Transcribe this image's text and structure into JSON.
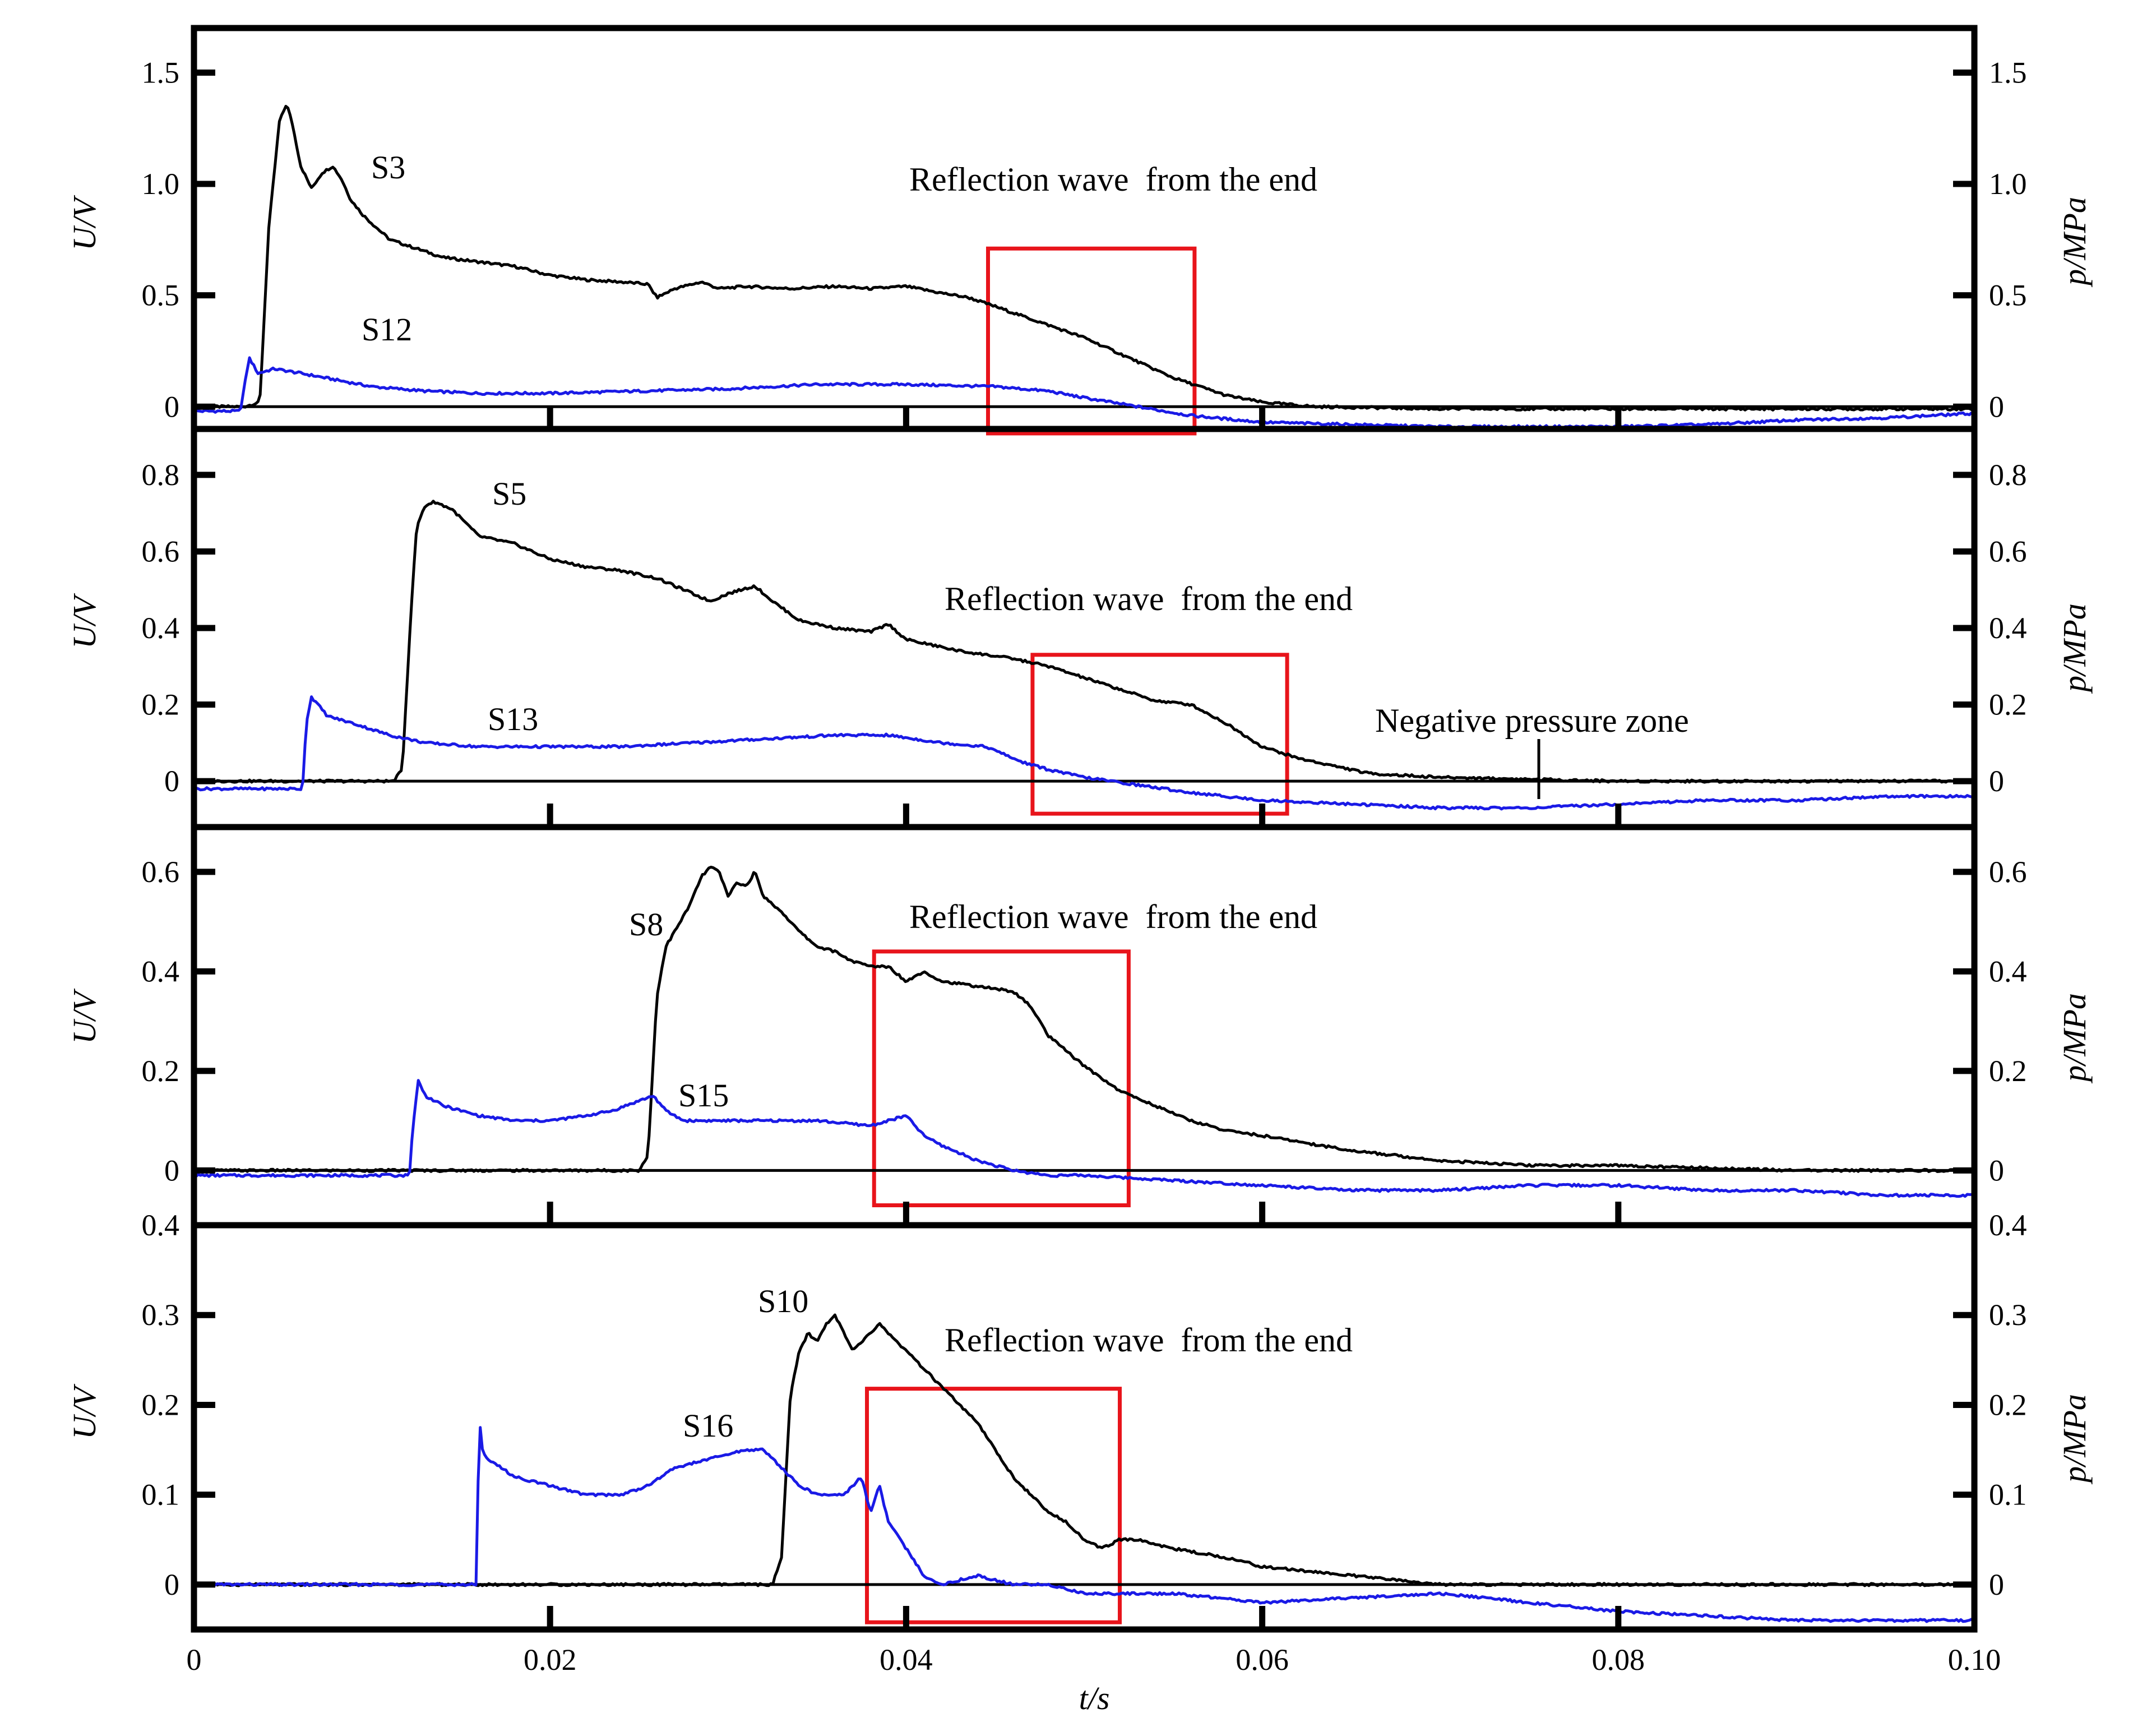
{
  "chart_data": [
    {
      "type": "line",
      "ylim": [
        -0.1,
        1.7
      ],
      "yticks": [
        0,
        0.5,
        1.0,
        1.5
      ],
      "ytick_labels": [
        "0",
        "0.5",
        "1.0",
        "1.5"
      ],
      "right_ytick_labels": [
        "0",
        "0.5",
        "1.0",
        "1.5"
      ],
      "ylabel": "U/V",
      "ylabel_right": "p/MPa",
      "annotation": "Reflection wave  from the end",
      "highlight_box": {
        "x": [
          0.0446,
          0.0562
        ],
        "y": [
          -0.12,
          0.71
        ]
      },
      "series": [
        {
          "name": "S3",
          "color": "#000000",
          "x": [
            0,
            0.0028,
            0.0037,
            0.0042,
            0.0048,
            0.0052,
            0.0055,
            0.006,
            0.0066,
            0.0072,
            0.0078,
            0.0083,
            0.0088,
            0.0095,
            0.0103,
            0.011,
            0.0125,
            0.014,
            0.016,
            0.018,
            0.02,
            0.022,
            0.024,
            0.0255,
            0.026,
            0.027,
            0.0285,
            0.0295,
            0.031,
            0.0335,
            0.036,
            0.038,
            0.04,
            0.042,
            0.0435,
            0.045,
            0.0475,
            0.05,
            0.0525,
            0.055,
            0.0565,
            0.058,
            0.06,
            0.063,
            0.07,
            0.08,
            0.09,
            0.1
          ],
          "y": [
            0,
            0,
            0.02,
            0.8,
            1.28,
            1.36,
            1.28,
            1.08,
            0.98,
            1.05,
            1.08,
            1.02,
            0.93,
            0.86,
            0.8,
            0.75,
            0.71,
            0.67,
            0.65,
            0.63,
            0.59,
            0.57,
            0.56,
            0.55,
            0.49,
            0.53,
            0.56,
            0.53,
            0.54,
            0.53,
            0.54,
            0.53,
            0.54,
            0.51,
            0.49,
            0.45,
            0.38,
            0.31,
            0.22,
            0.13,
            0.09,
            0.05,
            0.02,
            0.0,
            -0.01,
            -0.01,
            -0.01,
            -0.01
          ]
        },
        {
          "name": "S12",
          "color": "#1a1ae6",
          "x": [
            0,
            0.0026,
            0.0031,
            0.0036,
            0.0045,
            0.006,
            0.008,
            0.01,
            0.013,
            0.016,
            0.02,
            0.025,
            0.03,
            0.035,
            0.04,
            0.045,
            0.048,
            0.05,
            0.053,
            0.056,
            0.06,
            0.065,
            0.07,
            0.075,
            0.08,
            0.085,
            0.09,
            0.095,
            0.1
          ],
          "y": [
            -0.02,
            -0.02,
            0.22,
            0.15,
            0.17,
            0.15,
            0.12,
            0.09,
            0.07,
            0.06,
            0.06,
            0.07,
            0.08,
            0.1,
            0.1,
            0.09,
            0.07,
            0.04,
            0.0,
            -0.04,
            -0.07,
            -0.08,
            -0.09,
            -0.09,
            -0.09,
            -0.08,
            -0.06,
            -0.05,
            -0.03
          ]
        }
      ]
    },
    {
      "type": "line",
      "ylim": [
        -0.12,
        0.92
      ],
      "yticks": [
        0,
        0.2,
        0.4,
        0.6,
        0.8
      ],
      "ytick_labels": [
        "0",
        "0.2",
        "0.4",
        "0.6",
        "0.8"
      ],
      "right_ytick_labels": [
        "0",
        "0.2",
        "0.4",
        "0.6",
        "0.8"
      ],
      "ylabel": "U/V",
      "ylabel_right": "p/MPa",
      "annotation": "Reflection wave  from the end",
      "annotation2": "Negative pressure zone",
      "highlight_box": {
        "x": [
          0.0471,
          0.0614
        ],
        "y": [
          -0.085,
          0.33
        ]
      },
      "series": [
        {
          "name": "S5",
          "color": "#000000",
          "x": [
            0,
            0.0112,
            0.0117,
            0.0122,
            0.0125,
            0.0128,
            0.013,
            0.0135,
            0.0145,
            0.016,
            0.018,
            0.02,
            0.022,
            0.024,
            0.026,
            0.028,
            0.029,
            0.03,
            0.0315,
            0.0325,
            0.034,
            0.036,
            0.038,
            0.039,
            0.04,
            0.043,
            0.046,
            0.048,
            0.05,
            0.052,
            0.054,
            0.056,
            0.058,
            0.06,
            0.062,
            0.064,
            0.066,
            0.07,
            0.08,
            0.09,
            0.1
          ],
          "y": [
            0,
            0,
            0.03,
            0.45,
            0.66,
            0.7,
            0.72,
            0.73,
            0.71,
            0.64,
            0.62,
            0.58,
            0.56,
            0.55,
            0.53,
            0.49,
            0.47,
            0.49,
            0.51,
            0.47,
            0.42,
            0.4,
            0.39,
            0.41,
            0.37,
            0.34,
            0.32,
            0.3,
            0.27,
            0.24,
            0.21,
            0.2,
            0.15,
            0.09,
            0.06,
            0.04,
            0.02,
            0.01,
            0.0,
            0.0,
            0.0
          ]
        },
        {
          "name": "S13",
          "color": "#1a1ae6",
          "x": [
            0,
            0.0061,
            0.0063,
            0.0066,
            0.0075,
            0.009,
            0.011,
            0.013,
            0.016,
            0.02,
            0.024,
            0.028,
            0.032,
            0.036,
            0.039,
            0.042,
            0.0445,
            0.0465,
            0.048,
            0.05,
            0.053,
            0.056,
            0.06,
            0.065,
            0.07,
            0.075,
            0.08,
            0.085,
            0.09,
            0.095,
            0.1
          ],
          "y": [
            -0.02,
            -0.02,
            0.15,
            0.22,
            0.17,
            0.15,
            0.12,
            0.1,
            0.09,
            0.09,
            0.09,
            0.1,
            0.11,
            0.12,
            0.12,
            0.1,
            0.09,
            0.05,
            0.03,
            0.01,
            -0.01,
            -0.03,
            -0.05,
            -0.06,
            -0.07,
            -0.07,
            -0.06,
            -0.05,
            -0.05,
            -0.04,
            -0.04
          ]
        }
      ]
    },
    {
      "type": "line",
      "ylim": [
        -0.11,
        0.69
      ],
      "yticks": [
        0,
        0.2,
        0.4,
        0.6
      ],
      "ytick_labels": [
        "0",
        "0.2",
        "0.4",
        "0.6"
      ],
      "right_ytick_labels": [
        "0",
        "0.2",
        "0.4",
        "0.6"
      ],
      "ylabel": "U/V",
      "ylabel_right": "p/MPa",
      "annotation": "Reflection wave  from the end",
      "highlight_box": {
        "x": [
          0.0382,
          0.0525
        ],
        "y": [
          -0.07,
          0.44
        ]
      },
      "series": [
        {
          "name": "S8",
          "color": "#000000",
          "x": [
            0,
            0.025,
            0.0255,
            0.026,
            0.0265,
            0.027,
            0.0278,
            0.0285,
            0.029,
            0.0295,
            0.03,
            0.0305,
            0.031,
            0.0315,
            0.032,
            0.033,
            0.034,
            0.035,
            0.036,
            0.037,
            0.038,
            0.039,
            0.04,
            0.041,
            0.042,
            0.044,
            0.046,
            0.047,
            0.048,
            0.05,
            0.052,
            0.054,
            0.056,
            0.058,
            0.06,
            0.065,
            0.07,
            0.075,
            0.08,
            0.09,
            0.1
          ],
          "y": [
            0,
            0,
            0.03,
            0.35,
            0.45,
            0.48,
            0.53,
            0.59,
            0.61,
            0.6,
            0.55,
            0.58,
            0.57,
            0.6,
            0.55,
            0.52,
            0.48,
            0.45,
            0.44,
            0.42,
            0.41,
            0.41,
            0.38,
            0.4,
            0.38,
            0.37,
            0.36,
            0.33,
            0.27,
            0.21,
            0.16,
            0.13,
            0.1,
            0.08,
            0.07,
            0.04,
            0.02,
            0.01,
            0.01,
            0.0,
            0.0
          ]
        },
        {
          "name": "S15",
          "color": "#1a1ae6",
          "x": [
            0,
            0.0121,
            0.0123,
            0.0126,
            0.013,
            0.014,
            0.016,
            0.018,
            0.02,
            0.022,
            0.0235,
            0.025,
            0.0258,
            0.0265,
            0.0275,
            0.03,
            0.033,
            0.035,
            0.038,
            0.039,
            0.04,
            0.041,
            0.042,
            0.044,
            0.046,
            0.048,
            0.05,
            0.055,
            0.06,
            0.065,
            0.07,
            0.075,
            0.08,
            0.085,
            0.09,
            0.095,
            0.1
          ],
          "y": [
            -0.01,
            -0.01,
            0.09,
            0.18,
            0.15,
            0.13,
            0.11,
            0.1,
            0.1,
            0.11,
            0.12,
            0.14,
            0.15,
            0.12,
            0.1,
            0.1,
            0.1,
            0.1,
            0.09,
            0.1,
            0.11,
            0.07,
            0.05,
            0.02,
            0.0,
            -0.01,
            -0.01,
            -0.02,
            -0.03,
            -0.04,
            -0.04,
            -0.03,
            -0.03,
            -0.04,
            -0.04,
            -0.05,
            -0.05
          ]
        }
      ]
    },
    {
      "type": "line",
      "ylim": [
        -0.05,
        0.4
      ],
      "yticks": [
        0,
        0.1,
        0.2,
        0.3,
        0.4
      ],
      "ytick_labels": [
        "0",
        "0.1",
        "0.2",
        "0.3",
        "0.4"
      ],
      "right_ytick_labels": [
        "0",
        "0.1",
        "0.2",
        "0.3",
        "0.4"
      ],
      "ylabel": "U/V",
      "ylabel_right": "p/MPa",
      "annotation": "Reflection wave  from the end",
      "xlabel": "t/s",
      "xlim": [
        0,
        0.1
      ],
      "xticks": [
        0,
        0.02,
        0.04,
        0.06,
        0.08,
        0.1
      ],
      "xtick_labels": [
        "0",
        "0.02",
        "0.04",
        "0.06",
        "0.08",
        "0.10"
      ],
      "highlight_box": {
        "x": [
          0.0378,
          0.052
        ],
        "y": [
          -0.042,
          0.218
        ]
      },
      "series": [
        {
          "name": "S10",
          "color": "#000000",
          "x": [
            0,
            0.0325,
            0.033,
            0.0335,
            0.034,
            0.0345,
            0.035,
            0.0355,
            0.036,
            0.0365,
            0.037,
            0.0375,
            0.038,
            0.0385,
            0.039,
            0.0395,
            0.04,
            0.041,
            0.042,
            0.043,
            0.044,
            0.045,
            0.046,
            0.047,
            0.048,
            0.049,
            0.05,
            0.051,
            0.052,
            0.053,
            0.055,
            0.058,
            0.06,
            0.065,
            0.07,
            0.08,
            0.09,
            0.1
          ],
          "y": [
            0,
            0,
            0.03,
            0.21,
            0.26,
            0.28,
            0.27,
            0.29,
            0.3,
            0.28,
            0.26,
            0.27,
            0.28,
            0.29,
            0.28,
            0.27,
            0.26,
            0.24,
            0.22,
            0.2,
            0.18,
            0.15,
            0.12,
            0.1,
            0.08,
            0.07,
            0.05,
            0.04,
            0.05,
            0.05,
            0.04,
            0.03,
            0.02,
            0.01,
            0.0,
            0.0,
            0.0,
            0.0
          ]
        },
        {
          "name": "S16",
          "color": "#1a1ae6",
          "x": [
            0,
            0.0159,
            0.016,
            0.0162,
            0.0165,
            0.018,
            0.02,
            0.022,
            0.024,
            0.0255,
            0.027,
            0.029,
            0.031,
            0.032,
            0.033,
            0.034,
            0.035,
            0.0365,
            0.0375,
            0.038,
            0.0385,
            0.039,
            0.04,
            0.041,
            0.042,
            0.044,
            0.046,
            0.048,
            0.05,
            0.055,
            0.06,
            0.07,
            0.08,
            0.09,
            0.1
          ],
          "y": [
            0,
            0,
            0.19,
            0.15,
            0.14,
            0.12,
            0.11,
            0.1,
            0.1,
            0.11,
            0.13,
            0.14,
            0.15,
            0.15,
            0.13,
            0.11,
            0.1,
            0.1,
            0.12,
            0.08,
            0.11,
            0.07,
            0.04,
            0.01,
            0.0,
            0.01,
            0.0,
            0.0,
            -0.01,
            -0.01,
            -0.02,
            -0.01,
            -0.03,
            -0.04,
            -0.04
          ]
        }
      ]
    }
  ]
}
